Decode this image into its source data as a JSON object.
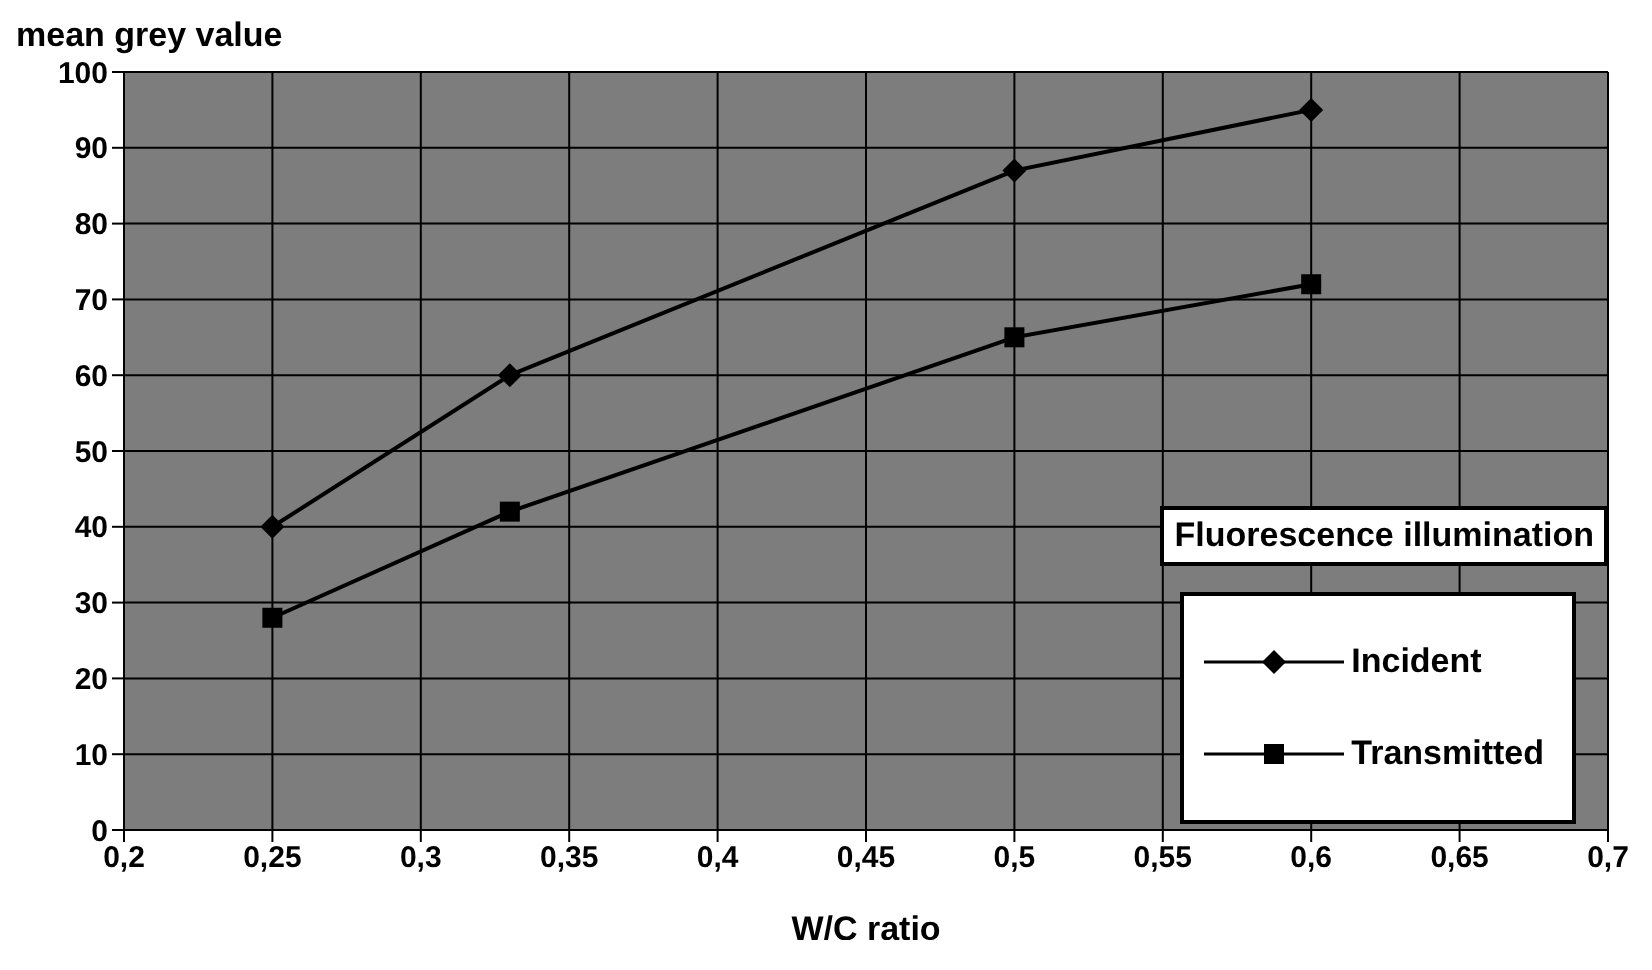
{
  "chart_data": {
    "type": "line",
    "ylabel": "mean grey value",
    "xlabel": "W/C ratio",
    "legend_title": "Fluorescence illumination",
    "x": [
      0.25,
      0.33,
      0.5,
      0.6
    ],
    "series": [
      {
        "name": "Incident",
        "color": "#000000",
        "marker": "diamond",
        "values": [
          40,
          60,
          87,
          95
        ]
      },
      {
        "name": "Transmitted",
        "color": "#000000",
        "marker": "square",
        "values": [
          28,
          42,
          65,
          72
        ]
      }
    ],
    "xlim": [
      0.2,
      0.7
    ],
    "xticks": [
      {
        "value": 0.2,
        "label": "0,2"
      },
      {
        "value": 0.25,
        "label": "0,25"
      },
      {
        "value": 0.3,
        "label": "0,3"
      },
      {
        "value": 0.35,
        "label": "0,35"
      },
      {
        "value": 0.4,
        "label": "0,4"
      },
      {
        "value": 0.45,
        "label": "0,45"
      },
      {
        "value": 0.5,
        "label": "0,5"
      },
      {
        "value": 0.55,
        "label": "0,55"
      },
      {
        "value": 0.6,
        "label": "0,6"
      },
      {
        "value": 0.65,
        "label": "0,65"
      },
      {
        "value": 0.7,
        "label": "0,7"
      }
    ],
    "ylim": [
      0,
      100
    ],
    "yticks": [
      0,
      10,
      20,
      30,
      40,
      50,
      60,
      70,
      80,
      90,
      100
    ],
    "grid": true,
    "legend": "right",
    "line_style": "solid"
  }
}
